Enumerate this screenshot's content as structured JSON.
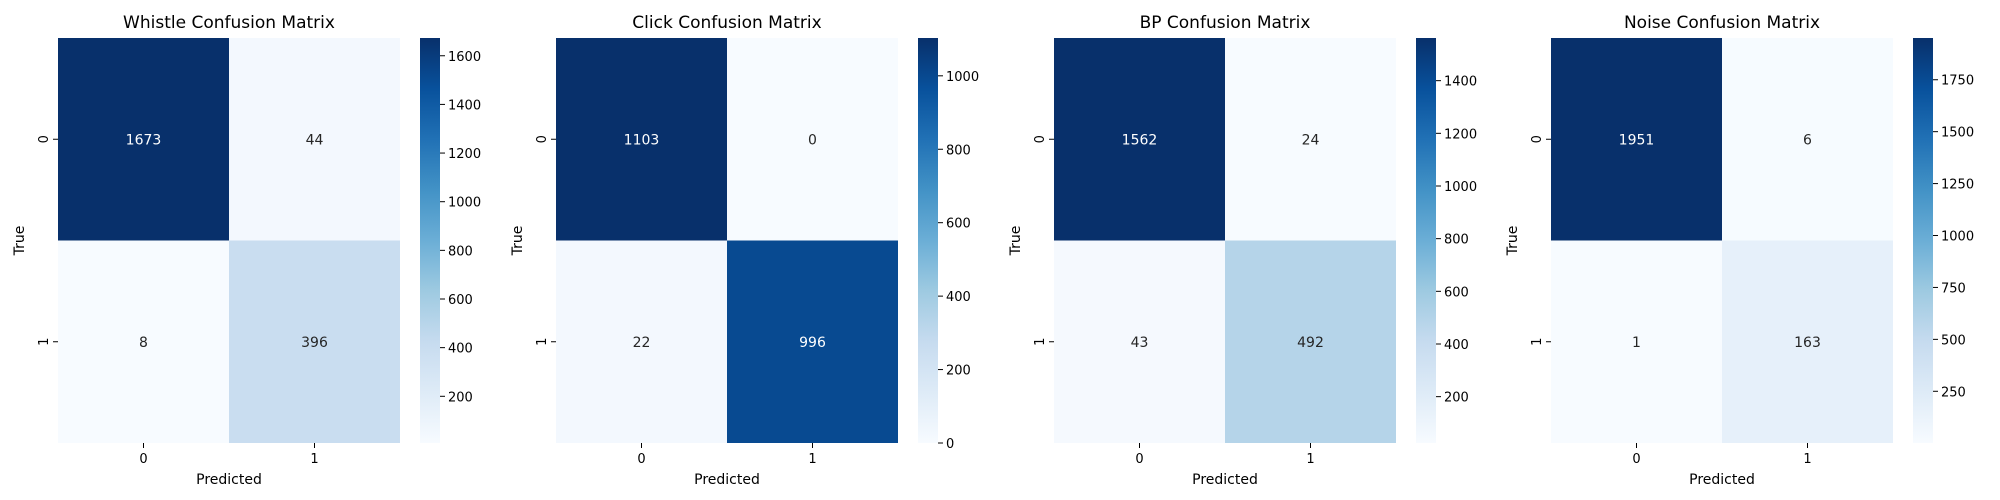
{
  "chart_data": [
    {
      "type": "heatmap",
      "title": "Whistle Confusion Matrix",
      "xlabel": "Predicted",
      "ylabel": "True",
      "x_categories": [
        "0",
        "1"
      ],
      "y_categories": [
        "0",
        "1"
      ],
      "values": [
        [
          1673,
          44
        ],
        [
          8,
          396
        ]
      ],
      "colormap": "Blues",
      "colorbar": {
        "vmin": 8,
        "vmax": 1673,
        "ticks": [
          200,
          400,
          600,
          800,
          1000,
          1200,
          1400,
          1600
        ]
      }
    },
    {
      "type": "heatmap",
      "title": "Click Confusion Matrix",
      "xlabel": "Predicted",
      "ylabel": "True",
      "x_categories": [
        "0",
        "1"
      ],
      "y_categories": [
        "0",
        "1"
      ],
      "values": [
        [
          1103,
          0
        ],
        [
          22,
          996
        ]
      ],
      "colormap": "Blues",
      "colorbar": {
        "vmin": 0,
        "vmax": 1103,
        "ticks": [
          0,
          200,
          400,
          600,
          800,
          1000
        ]
      }
    },
    {
      "type": "heatmap",
      "title": "BP Confusion Matrix",
      "xlabel": "Predicted",
      "ylabel": "True",
      "x_categories": [
        "0",
        "1"
      ],
      "y_categories": [
        "0",
        "1"
      ],
      "values": [
        [
          1562,
          24
        ],
        [
          43,
          492
        ]
      ],
      "colormap": "Blues",
      "colorbar": {
        "vmin": 24,
        "vmax": 1562,
        "ticks": [
          200,
          400,
          600,
          800,
          1000,
          1200,
          1400
        ]
      }
    },
    {
      "type": "heatmap",
      "title": "Noise Confusion Matrix",
      "xlabel": "Predicted",
      "ylabel": "True",
      "x_categories": [
        "0",
        "1"
      ],
      "y_categories": [
        "0",
        "1"
      ],
      "values": [
        [
          1951,
          6
        ],
        [
          1,
          163
        ]
      ],
      "colormap": "Blues",
      "colorbar": {
        "vmin": 1,
        "vmax": 1951,
        "ticks": [
          250,
          500,
          750,
          1000,
          1250,
          1500,
          1750
        ]
      }
    }
  ]
}
